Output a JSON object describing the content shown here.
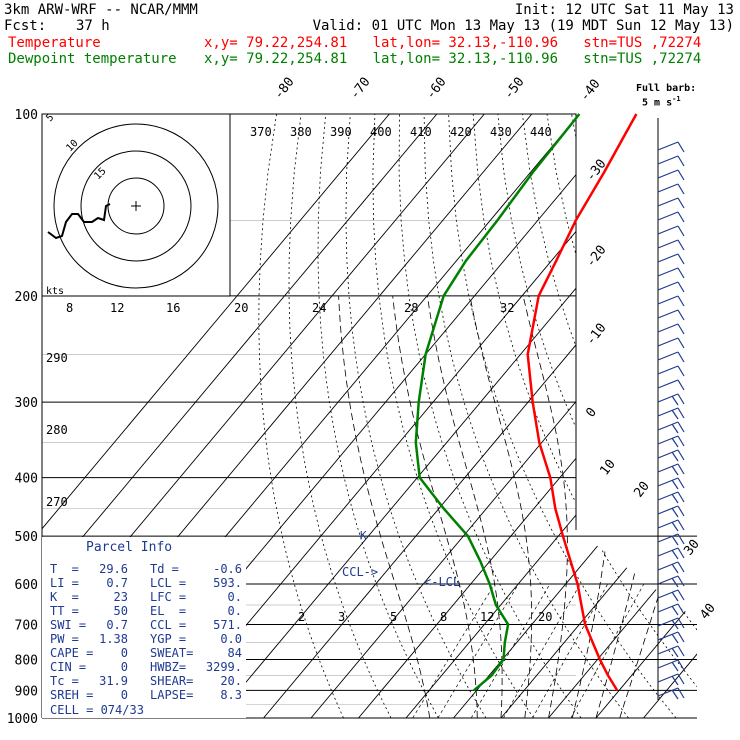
{
  "header": {
    "model": "3km ARW-WRF -- NCAR/MMM",
    "init": "Init: 12 UTC Sat 11 May 13",
    "fcst_label": "Fcst:",
    "fcst_value": "37 h",
    "valid": "Valid: 01 UTC Mon 13 May 13 (19 MDT Sun 12 May 13)",
    "temp_label": "Temperature",
    "dew_label": "Dewpoint temperature",
    "loc_info": "x,y= 79.22,254.81   lat,lon= 32.13,-110.96   stn=TUS ,72274",
    "temp_color": "#ff0000",
    "dew_color": "#008000"
  },
  "barb_legend": {
    "line1": "Full barb:",
    "line2": "5 m s",
    "exp": "-1"
  },
  "hodograph": {
    "kts_label": "kts",
    "ring_labels": [
      "5",
      "10",
      "15"
    ],
    "theta_labels": [
      "370",
      "380",
      "390",
      "400",
      "410",
      "420",
      "430",
      "440"
    ],
    "speed_labels": [
      "8",
      "12",
      "16",
      "20",
      "24",
      "28",
      "32"
    ],
    "left_theta_labels": [
      "290",
      "280",
      "270"
    ]
  },
  "parcel_info": {
    "title": "Parcel Info",
    "rows": [
      [
        "T  =",
        "29.6",
        "Td =",
        "-0.6"
      ],
      [
        "LI =",
        "0.7",
        "LCL =",
        "593."
      ],
      [
        "K  =",
        "23",
        "LFC =",
        "0."
      ],
      [
        "TT =",
        "50",
        "EL  =",
        "0."
      ],
      [
        "SWI =",
        "0.7",
        "CCL =",
        "571."
      ],
      [
        "PW =",
        "1.38",
        "YGP =",
        "0.0"
      ],
      [
        "CAPE =",
        "0",
        "SWEAT=",
        "84"
      ],
      [
        "CIN =",
        "0",
        "HWBZ=",
        "3299."
      ],
      [
        "Tc =",
        "31.9",
        "SHEAR=",
        "20."
      ],
      [
        "SREH =",
        "0",
        "LAPSE=",
        "8.3"
      ]
    ],
    "cell": "CELL = 074/33"
  },
  "markers": {
    "ccl": "CCL->",
    "lcl": "<-LCL",
    "k": "K"
  },
  "chart_data": {
    "type": "line",
    "title": "",
    "pressure_levels": [
      100,
      200,
      300,
      400,
      500,
      600,
      700,
      800,
      900,
      1000
    ],
    "isotherm_labels": [
      "-80",
      "-70",
      "-60",
      "-50",
      "-40",
      "-30",
      "-20",
      "-10",
      "0",
      "10",
      "20",
      "30",
      "40"
    ],
    "mixing_ratio_labels": [
      "2",
      "3",
      "5",
      "8",
      "12",
      "20"
    ],
    "series": [
      {
        "name": "Temperature",
        "color": "#ff0000",
        "pressure": [
          900,
          850,
          800,
          750,
          700,
          650,
          600,
          550,
          500,
          450,
          400,
          350,
          300,
          250,
          200,
          175,
          150,
          125,
          110,
          100
        ],
        "temperature": [
          29.6,
          25.0,
          20.5,
          16.0,
          11.2,
          7.0,
          2.5,
          -3.0,
          -9.0,
          -15.5,
          -22.0,
          -30.5,
          -39.0,
          -48.5,
          -56.5,
          -59.0,
          -62.0,
          -64.5,
          -66.5,
          -68.0
        ]
      },
      {
        "name": "Dewpoint temperature",
        "color": "#008000",
        "pressure": [
          900,
          850,
          800,
          750,
          700,
          650,
          600,
          550,
          500,
          450,
          400,
          350,
          300,
          250,
          200,
          175,
          150,
          125,
          110,
          100
        ],
        "temperature": [
          -0.6,
          0.5,
          0.2,
          -2.5,
          -5.0,
          -11.0,
          -16.0,
          -22.0,
          -29.0,
          -39.0,
          -49.5,
          -56.5,
          -63.0,
          -70.0,
          -76.5,
          -78.0,
          -78.5,
          -79.5,
          -79.8,
          -80.0
        ]
      }
    ],
    "wind_barb_columns": 2
  }
}
